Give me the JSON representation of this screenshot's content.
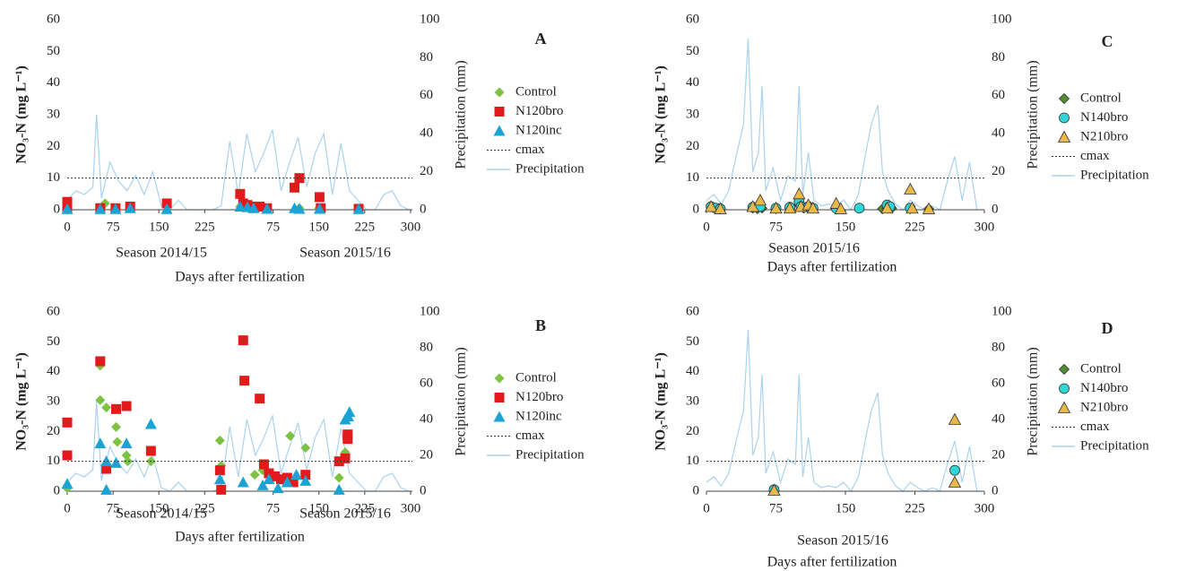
{
  "chart_data": [
    {
      "type": "scatter",
      "title": "A",
      "xlabel": "Days after fertilization",
      "ylabel": "NO₃-N (mg L⁻¹)",
      "y2label": "Precipitation (mm)",
      "annotations": [
        "Season 2014/15",
        "Season 2015/16"
      ],
      "xlim": [
        0,
        565
      ],
      "xticks": [
        0,
        75,
        150,
        225,
        {
          "value": 337,
          "label": "75"
        },
        {
          "value": 412,
          "label": "150"
        },
        {
          "value": 487,
          "label": "225"
        },
        {
          "value": 562,
          "label": "300"
        }
      ],
      "ylim": [
        0,
        60
      ],
      "yticks": [
        0,
        10,
        20,
        30,
        40,
        50,
        60
      ],
      "y2lim": [
        0,
        100
      ],
      "y2ticks": [
        0,
        20,
        40,
        60,
        80,
        100
      ],
      "series": [
        {
          "name": "Control",
          "color": "#7dc242",
          "marker": "diamond",
          "x": [
            0,
            54,
            62,
            79,
            103,
            283,
            290,
            300,
            313,
            327,
            380,
            412,
            477
          ],
          "values": [
            0,
            0.3,
            2,
            0.5,
            0.5,
            1,
            0.8,
            0.5,
            0.5,
            0.5,
            0.5,
            0.5,
            0.3
          ]
        },
        {
          "name": "N120bro",
          "color": "#e31a1c",
          "marker": "square",
          "x": [
            0,
            0,
            54,
            79,
            103,
            163,
            283,
            288,
            295,
            305,
            315,
            327,
            372,
            380,
            413,
            415,
            477
          ],
          "values": [
            2.5,
            0.3,
            0.5,
            0.5,
            1,
            2,
            5,
            2,
            1.5,
            1,
            1,
            0.5,
            7,
            10,
            4,
            0.5,
            0.3
          ]
        },
        {
          "name": "N120inc",
          "color": "#1ba3d3",
          "marker": "triangle",
          "x": [
            0,
            54,
            79,
            103,
            163,
            283,
            295,
            305,
            327,
            372,
            380,
            413,
            477
          ],
          "values": [
            0.2,
            0.2,
            0.2,
            0.5,
            0.2,
            1,
            0.8,
            0.5,
            0.3,
            0.5,
            0.3,
            0.3,
            0.2
          ]
        },
        {
          "name": "cmax",
          "color": "#333333",
          "kind": "hline",
          "values": [
            10
          ]
        },
        {
          "name": "Precipitation",
          "color": "#a9d3ee",
          "kind": "line",
          "axis": "y2",
          "x": [
            0,
            14,
            28,
            42,
            48,
            56,
            70,
            84,
            98,
            112,
            126,
            140,
            154,
            168,
            182,
            196,
            210,
            224,
            238,
            252,
            266,
            280,
            294,
            308,
            322,
            336,
            350,
            364,
            378,
            392,
            406,
            420,
            434,
            448,
            462,
            476,
            490,
            504,
            518,
            532,
            546,
            560
          ],
          "values": [
            5,
            10,
            8,
            12,
            50,
            6,
            25,
            15,
            10,
            18,
            8,
            20,
            2,
            0,
            5,
            0,
            0,
            0,
            0,
            2,
            36,
            8,
            40,
            20,
            30,
            42,
            10,
            25,
            38,
            12,
            30,
            40,
            8,
            35,
            10,
            5,
            0,
            0,
            8,
            10,
            2,
            0
          ]
        }
      ]
    },
    {
      "type": "scatter",
      "title": "B",
      "xlabel": "Days after fertilization",
      "ylabel": "NO₃-N (mg L⁻¹)",
      "y2label": "Precipitation (mm)",
      "annotations": [
        "Season 2014/15",
        "Season 2015/16"
      ],
      "xlim": [
        0,
        565
      ],
      "xticks": [
        0,
        75,
        150,
        225,
        {
          "value": 337,
          "label": "75"
        },
        {
          "value": 412,
          "label": "150"
        },
        {
          "value": 487,
          "label": "225"
        },
        {
          "value": 562,
          "label": "300"
        }
      ],
      "ylim": [
        0,
        60
      ],
      "yticks": [
        0,
        10,
        20,
        30,
        40,
        50,
        60
      ],
      "y2lim": [
        0,
        100
      ],
      "y2ticks": [
        0,
        20,
        40,
        60,
        80,
        100
      ],
      "series": [
        {
          "name": "Control",
          "color": "#7dc242",
          "marker": "diamond",
          "x": [
            0,
            54,
            54,
            64,
            80,
            82,
            97,
            99,
            137,
            250,
            252,
            307,
            320,
            335,
            365,
            390,
            445,
            455
          ],
          "values": [
            1,
            42,
            30.5,
            28,
            21.5,
            16.5,
            12,
            10,
            10,
            17,
            8.5,
            5.5,
            7,
            4,
            18.5,
            14.5,
            4.5,
            13
          ]
        },
        {
          "name": "N120bro",
          "color": "#e31a1c",
          "marker": "square",
          "x": [
            0,
            0,
            54,
            64,
            80,
            97,
            137,
            250,
            252,
            288,
            290,
            315,
            322,
            330,
            340,
            350,
            360,
            370,
            390,
            445,
            455,
            459,
            459
          ],
          "values": [
            23,
            12,
            43.5,
            7.5,
            27.5,
            28.5,
            13.5,
            7,
            0.5,
            50.5,
            37,
            31,
            9,
            6,
            5,
            4,
            4.5,
            3,
            5.5,
            10,
            11,
            19,
            17.5
          ]
        },
        {
          "name": "N120inc",
          "color": "#1ba3d3",
          "marker": "triangle",
          "x": [
            0,
            54,
            64,
            64,
            80,
            97,
            137,
            250,
            288,
            320,
            330,
            345,
            360,
            375,
            390,
            445,
            455,
            460,
            462
          ],
          "values": [
            2.5,
            16,
            10,
            0.5,
            9.5,
            16,
            22.5,
            4,
            3,
            2,
            4,
            1,
            3,
            5.5,
            3.5,
            0.5,
            24,
            25,
            26.5
          ]
        },
        {
          "name": "cmax",
          "color": "#333333",
          "kind": "hline",
          "values": [
            10
          ]
        },
        {
          "name": "Precipitation",
          "color": "#a9d3ee",
          "kind": "line",
          "axis": "y2",
          "x": [
            0,
            14,
            28,
            42,
            48,
            56,
            70,
            84,
            98,
            112,
            126,
            140,
            154,
            168,
            182,
            196,
            210,
            224,
            238,
            252,
            266,
            280,
            294,
            308,
            322,
            336,
            350,
            364,
            378,
            392,
            406,
            420,
            434,
            448,
            462,
            476,
            490,
            504,
            518,
            532,
            546,
            560
          ],
          "values": [
            5,
            10,
            8,
            12,
            50,
            6,
            25,
            15,
            10,
            18,
            8,
            20,
            2,
            0,
            5,
            0,
            0,
            0,
            0,
            2,
            36,
            8,
            40,
            20,
            30,
            42,
            10,
            25,
            38,
            12,
            30,
            40,
            8,
            35,
            10,
            5,
            0,
            0,
            8,
            10,
            2,
            0
          ]
        }
      ]
    },
    {
      "type": "scatter",
      "title": "C",
      "xlabel": "Days after fertilization",
      "ylabel": "NO₃-N (mg L⁻¹)",
      "y2label": "Precipitation (mm)",
      "annotations": [
        "Season 2015/16"
      ],
      "xlim": [
        0,
        300
      ],
      "xticks": [
        0,
        75,
        150,
        225,
        300
      ],
      "ylim": [
        0,
        60
      ],
      "yticks": [
        0,
        10,
        20,
        30,
        40,
        50,
        60
      ],
      "y2lim": [
        0,
        100
      ],
      "y2ticks": [
        0,
        20,
        40,
        60,
        80,
        100
      ],
      "series": [
        {
          "name": "Control",
          "color": "#4f8f2f",
          "marker": "diamond",
          "x": [
            5,
            10,
            15,
            50,
            55,
            60,
            75,
            90,
            100,
            105,
            110,
            140,
            165,
            190,
            195,
            200,
            220,
            240
          ],
          "values": [
            1,
            0.5,
            0.3,
            0.5,
            0.3,
            0.5,
            0.3,
            0.5,
            1.5,
            0.5,
            0.5,
            0.3,
            0.5,
            0.3,
            0.5,
            0.5,
            0.3,
            0.3
          ]
        },
        {
          "name": "N140bro",
          "color": "#2fd6d6",
          "marker": "circle",
          "x": [
            5,
            10,
            15,
            50,
            58,
            75,
            90,
            100,
            102,
            110,
            115,
            140,
            165,
            195,
            198,
            220
          ],
          "values": [
            1,
            0.5,
            0.3,
            0.8,
            1,
            0.5,
            0.8,
            2.5,
            1,
            1,
            0.5,
            0.5,
            0.5,
            1.5,
            1,
            0.5
          ]
        },
        {
          "name": "N210bro",
          "color": "#e8b84a",
          "marker": "triangle",
          "x": [
            5,
            15,
            50,
            58,
            75,
            90,
            100,
            102,
            110,
            115,
            140,
            145,
            195,
            220,
            222,
            240
          ],
          "values": [
            1,
            0.3,
            1,
            3,
            0.5,
            0.5,
            5,
            1,
            1.5,
            0.5,
            2,
            0.3,
            0.5,
            6.5,
            0.5,
            0.3
          ]
        },
        {
          "name": "cmax",
          "color": "#333333",
          "kind": "hline",
          "values": [
            10
          ]
        },
        {
          "name": "Precipitation",
          "color": "#a9d3ee",
          "kind": "line",
          "axis": "y2",
          "x": [
            0,
            8,
            16,
            24,
            32,
            40,
            45,
            50,
            56,
            60,
            64,
            72,
            80,
            88,
            96,
            100,
            104,
            110,
            116,
            124,
            132,
            140,
            148,
            156,
            164,
            172,
            178,
            185,
            190,
            196,
            204,
            212,
            220,
            228,
            236,
            244,
            252,
            260,
            268,
            276,
            284,
            292
          ],
          "values": [
            5,
            8,
            3,
            10,
            28,
            45,
            90,
            20,
            30,
            65,
            10,
            22,
            5,
            18,
            15,
            65,
            8,
            30,
            5,
            2,
            3,
            2,
            5,
            0,
            8,
            30,
            45,
            55,
            20,
            10,
            3,
            0,
            5,
            2,
            0,
            2,
            0,
            15,
            28,
            5,
            25,
            0
          ]
        }
      ]
    },
    {
      "type": "scatter",
      "title": "D",
      "xlabel": "Days after fertilization",
      "ylabel": "NO₃-N (mg L⁻¹)",
      "y2label": "Precipitation (mm)",
      "annotations": [
        "Season 2015/16"
      ],
      "xlim": [
        0,
        300
      ],
      "xticks": [
        0,
        75,
        150,
        225,
        300
      ],
      "ylim": [
        0,
        60
      ],
      "yticks": [
        0,
        10,
        20,
        30,
        40,
        50,
        60
      ],
      "y2lim": [
        0,
        100
      ],
      "y2ticks": [
        0,
        20,
        40,
        60,
        80,
        100
      ],
      "series": [
        {
          "name": "Control",
          "color": "#4f8f2f",
          "marker": "diamond",
          "x": [
            73
          ],
          "values": [
            0.3
          ]
        },
        {
          "name": "N140bro",
          "color": "#2fd6d6",
          "marker": "circle",
          "x": [
            73,
            268
          ],
          "values": [
            0.5,
            7
          ]
        },
        {
          "name": "N210bro",
          "color": "#e8b84a",
          "marker": "triangle",
          "x": [
            73,
            268,
            268
          ],
          "values": [
            0.3,
            24,
            3
          ]
        },
        {
          "name": "cmax",
          "color": "#333333",
          "kind": "hline",
          "values": [
            10
          ]
        },
        {
          "name": "Precipitation",
          "color": "#a9d3ee",
          "kind": "line",
          "axis": "y2",
          "x": [
            0,
            8,
            16,
            24,
            32,
            40,
            45,
            50,
            56,
            60,
            64,
            72,
            80,
            88,
            96,
            100,
            104,
            110,
            116,
            124,
            132,
            140,
            148,
            156,
            164,
            172,
            178,
            185,
            190,
            196,
            204,
            212,
            220,
            228,
            236,
            244,
            252,
            260,
            268,
            276,
            284,
            292
          ],
          "values": [
            5,
            8,
            3,
            10,
            28,
            45,
            90,
            20,
            30,
            65,
            10,
            22,
            5,
            18,
            15,
            65,
            8,
            30,
            5,
            2,
            3,
            2,
            5,
            0,
            8,
            30,
            45,
            55,
            20,
            10,
            3,
            0,
            5,
            2,
            0,
            2,
            0,
            15,
            28,
            5,
            25,
            0
          ]
        }
      ]
    }
  ]
}
